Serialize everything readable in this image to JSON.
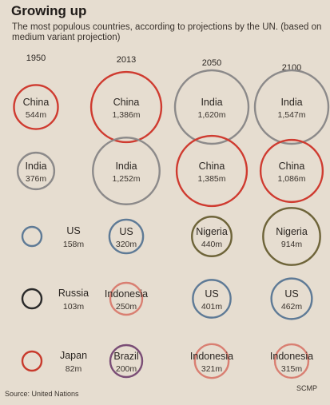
{
  "header": {
    "title": "Growing up",
    "subtitle": "The most populous countries, according to projections by the UN. (based on medium variant projection)"
  },
  "footer": {
    "source": "Source: United Nations",
    "credit": "SCMP"
  },
  "colors": {
    "China": "#cf3b30",
    "India": "#8c8a8a",
    "US": "#5e7a96",
    "Russia": "#2a2a2a",
    "Japan": "#c83a2c",
    "Indonesia": "#d97f72",
    "Brazil": "#7a4d76",
    "Nigeria": "#6e6439"
  },
  "chart_data": {
    "type": "bubble",
    "title": "Growing up",
    "unit": "m",
    "years": [
      "1950",
      "2013",
      "2050",
      "2100"
    ],
    "columns": [
      {
        "year": "1950",
        "entries": [
          {
            "country": "China",
            "value": 544,
            "label": "544m"
          },
          {
            "country": "India",
            "value": 376,
            "label": "376m"
          },
          {
            "country": "US",
            "value": 158,
            "label": "158m"
          },
          {
            "country": "Russia",
            "value": 103,
            "label": "103m"
          },
          {
            "country": "Japan",
            "value": 82,
            "label": "82m"
          }
        ]
      },
      {
        "year": "2013",
        "entries": [
          {
            "country": "China",
            "value": 1386,
            "label": "1,386m"
          },
          {
            "country": "India",
            "value": 1252,
            "label": "1,252m"
          },
          {
            "country": "US",
            "value": 320,
            "label": "320m"
          },
          {
            "country": "Indonesia",
            "value": 250,
            "label": "250m"
          },
          {
            "country": "Brazil",
            "value": 200,
            "label": "200m"
          }
        ]
      },
      {
        "year": "2050",
        "entries": [
          {
            "country": "India",
            "value": 1620,
            "label": "1,620m"
          },
          {
            "country": "China",
            "value": 1385,
            "label": "1,385m"
          },
          {
            "country": "Nigeria",
            "value": 440,
            "label": "440m"
          },
          {
            "country": "US",
            "value": 401,
            "label": "401m"
          },
          {
            "country": "Indonesia",
            "value": 321,
            "label": "321m"
          }
        ]
      },
      {
        "year": "2100",
        "entries": [
          {
            "country": "India",
            "value": 1547,
            "label": "1,547m"
          },
          {
            "country": "China",
            "value": 1086,
            "label": "1,086m"
          },
          {
            "country": "Nigeria",
            "value": 914,
            "label": "914m"
          },
          {
            "country": "US",
            "value": 462,
            "label": "462m"
          },
          {
            "country": "Indonesia",
            "value": 315,
            "label": "315m"
          }
        ]
      }
    ]
  }
}
